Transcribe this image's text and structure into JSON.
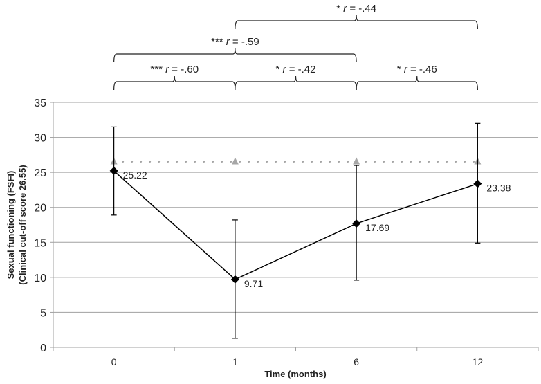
{
  "chart_data": {
    "type": "line",
    "xlabel": "Time (months)",
    "ylabel": "Sexual functioning (FSFI)",
    "ylabel2": "(Clinical cut-off score 26.55)",
    "categories": [
      "0",
      "1",
      "6",
      "12"
    ],
    "ylim": [
      0,
      35
    ],
    "yticks": [
      0,
      5,
      10,
      15,
      20,
      25,
      30,
      35
    ],
    "grid": true,
    "series": [
      {
        "values": [
          25.22,
          9.71,
          17.69,
          23.38
        ],
        "data_labels": [
          "25.22",
          "9.71",
          "17.69",
          "23.38"
        ],
        "error_low": [
          18.9,
          1.3,
          9.6,
          14.9
        ],
        "error_high": [
          31.5,
          18.2,
          26.0,
          32.0
        ],
        "color": "#000000",
        "marker": "diamond"
      },
      {
        "values": [
          26.55,
          26.55,
          26.55,
          26.55
        ],
        "color": "#a6a6a6",
        "marker": "triangle",
        "line": "dotted"
      }
    ],
    "annotations": [
      {
        "from": 0,
        "to": 1,
        "level": 0,
        "stars": "***",
        "r": "-.60"
      },
      {
        "from": 1,
        "to": 2,
        "level": 0,
        "stars": "*",
        "r": "-.42"
      },
      {
        "from": 2,
        "to": 3,
        "level": 0,
        "stars": "*",
        "r": "-.46"
      },
      {
        "from": 0,
        "to": 2,
        "level": 1,
        "stars": "***",
        "r": "-.59"
      },
      {
        "from": 1,
        "to": 3,
        "level": 2,
        "stars": "*",
        "r": "-.44"
      }
    ]
  }
}
